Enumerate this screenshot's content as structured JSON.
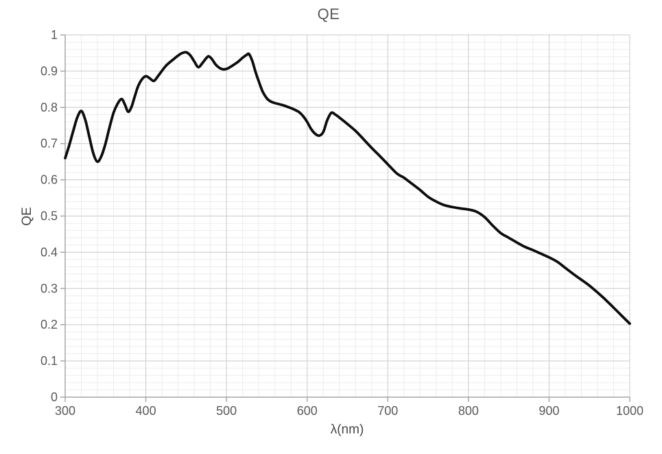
{
  "page": {
    "background": "#ffffff"
  },
  "chart_data": {
    "type": "line",
    "title": "QE",
    "xlabel": "λ(nm)",
    "ylabel": "QE",
    "xlim": [
      300,
      1000
    ],
    "ylim": [
      0,
      1
    ],
    "x_major_ticks": [
      300,
      400,
      500,
      600,
      700,
      800,
      900,
      1000
    ],
    "y_major_ticks": [
      {
        "value": 0,
        "label": "0"
      },
      {
        "value": 0.1,
        "label": "0.1"
      },
      {
        "value": 0.2,
        "label": "0.2"
      },
      {
        "value": 0.3,
        "label": "0.3"
      },
      {
        "value": 0.4,
        "label": "0.4"
      },
      {
        "value": 0.5,
        "label": "0.5"
      },
      {
        "value": 0.6,
        "label": "0.6"
      },
      {
        "value": 0.7,
        "label": "0.7"
      },
      {
        "value": 0.8,
        "label": "0.8"
      },
      {
        "value": 0.9,
        "label": "0.9"
      },
      {
        "value": 1,
        "label": "1"
      }
    ],
    "x_minor_step": 20,
    "y_minor_step": 0.02,
    "grid": {
      "major": true,
      "minor": true
    },
    "legend": "none",
    "colors": {
      "text": "#595959",
      "axis_title_text": "#474747",
      "axis": "#a6a6a6",
      "major_grid": "#c9c9c9",
      "minor_grid": "#ececec",
      "curve": "#0d0d0d"
    },
    "series": [
      {
        "name": "QE",
        "color": "#0d0d0d",
        "points": [
          [
            300,
            0.66
          ],
          [
            305,
            0.695
          ],
          [
            310,
            0.735
          ],
          [
            315,
            0.772
          ],
          [
            320,
            0.79
          ],
          [
            325,
            0.765
          ],
          [
            330,
            0.718
          ],
          [
            335,
            0.672
          ],
          [
            340,
            0.65
          ],
          [
            345,
            0.666
          ],
          [
            350,
            0.7
          ],
          [
            355,
            0.745
          ],
          [
            360,
            0.785
          ],
          [
            365,
            0.81
          ],
          [
            370,
            0.823
          ],
          [
            374,
            0.808
          ],
          [
            378,
            0.788
          ],
          [
            382,
            0.8
          ],
          [
            386,
            0.828
          ],
          [
            390,
            0.856
          ],
          [
            395,
            0.877
          ],
          [
            400,
            0.886
          ],
          [
            405,
            0.88
          ],
          [
            410,
            0.873
          ],
          [
            415,
            0.886
          ],
          [
            420,
            0.901
          ],
          [
            425,
            0.915
          ],
          [
            430,
            0.925
          ],
          [
            435,
            0.934
          ],
          [
            440,
            0.943
          ],
          [
            445,
            0.95
          ],
          [
            450,
            0.952
          ],
          [
            455,
            0.944
          ],
          [
            460,
            0.927
          ],
          [
            465,
            0.911
          ],
          [
            470,
            0.922
          ],
          [
            475,
            0.936
          ],
          [
            478,
            0.941
          ],
          [
            482,
            0.933
          ],
          [
            487,
            0.917
          ],
          [
            492,
            0.908
          ],
          [
            496,
            0.905
          ],
          [
            500,
            0.906
          ],
          [
            505,
            0.912
          ],
          [
            510,
            0.919
          ],
          [
            515,
            0.927
          ],
          [
            520,
            0.937
          ],
          [
            525,
            0.945
          ],
          [
            528,
            0.947
          ],
          [
            532,
            0.928
          ],
          [
            536,
            0.898
          ],
          [
            540,
            0.872
          ],
          [
            545,
            0.843
          ],
          [
            550,
            0.825
          ],
          [
            555,
            0.816
          ],
          [
            560,
            0.812
          ],
          [
            565,
            0.809
          ],
          [
            570,
            0.806
          ],
          [
            575,
            0.802
          ],
          [
            580,
            0.798
          ],
          [
            585,
            0.793
          ],
          [
            590,
            0.787
          ],
          [
            595,
            0.776
          ],
          [
            600,
            0.76
          ],
          [
            605,
            0.74
          ],
          [
            610,
            0.727
          ],
          [
            615,
            0.722
          ],
          [
            620,
            0.732
          ],
          [
            625,
            0.765
          ],
          [
            630,
            0.785
          ],
          [
            635,
            0.78
          ],
          [
            640,
            0.772
          ],
          [
            650,
            0.754
          ],
          [
            660,
            0.735
          ],
          [
            670,
            0.712
          ],
          [
            680,
            0.688
          ],
          [
            690,
            0.666
          ],
          [
            700,
            0.643
          ],
          [
            710,
            0.62
          ],
          [
            715,
            0.612
          ],
          [
            720,
            0.606
          ],
          [
            730,
            0.589
          ],
          [
            740,
            0.572
          ],
          [
            750,
            0.553
          ],
          [
            760,
            0.54
          ],
          [
            770,
            0.53
          ],
          [
            780,
            0.525
          ],
          [
            790,
            0.521
          ],
          [
            800,
            0.518
          ],
          [
            810,
            0.512
          ],
          [
            820,
            0.497
          ],
          [
            830,
            0.474
          ],
          [
            840,
            0.453
          ],
          [
            850,
            0.44
          ],
          [
            860,
            0.427
          ],
          [
            870,
            0.415
          ],
          [
            880,
            0.406
          ],
          [
            890,
            0.396
          ],
          [
            900,
            0.386
          ],
          [
            910,
            0.374
          ],
          [
            920,
            0.357
          ],
          [
            930,
            0.34
          ],
          [
            940,
            0.324
          ],
          [
            950,
            0.308
          ],
          [
            960,
            0.289
          ],
          [
            970,
            0.269
          ],
          [
            980,
            0.247
          ],
          [
            990,
            0.225
          ],
          [
            1000,
            0.203
          ]
        ]
      }
    ]
  }
}
